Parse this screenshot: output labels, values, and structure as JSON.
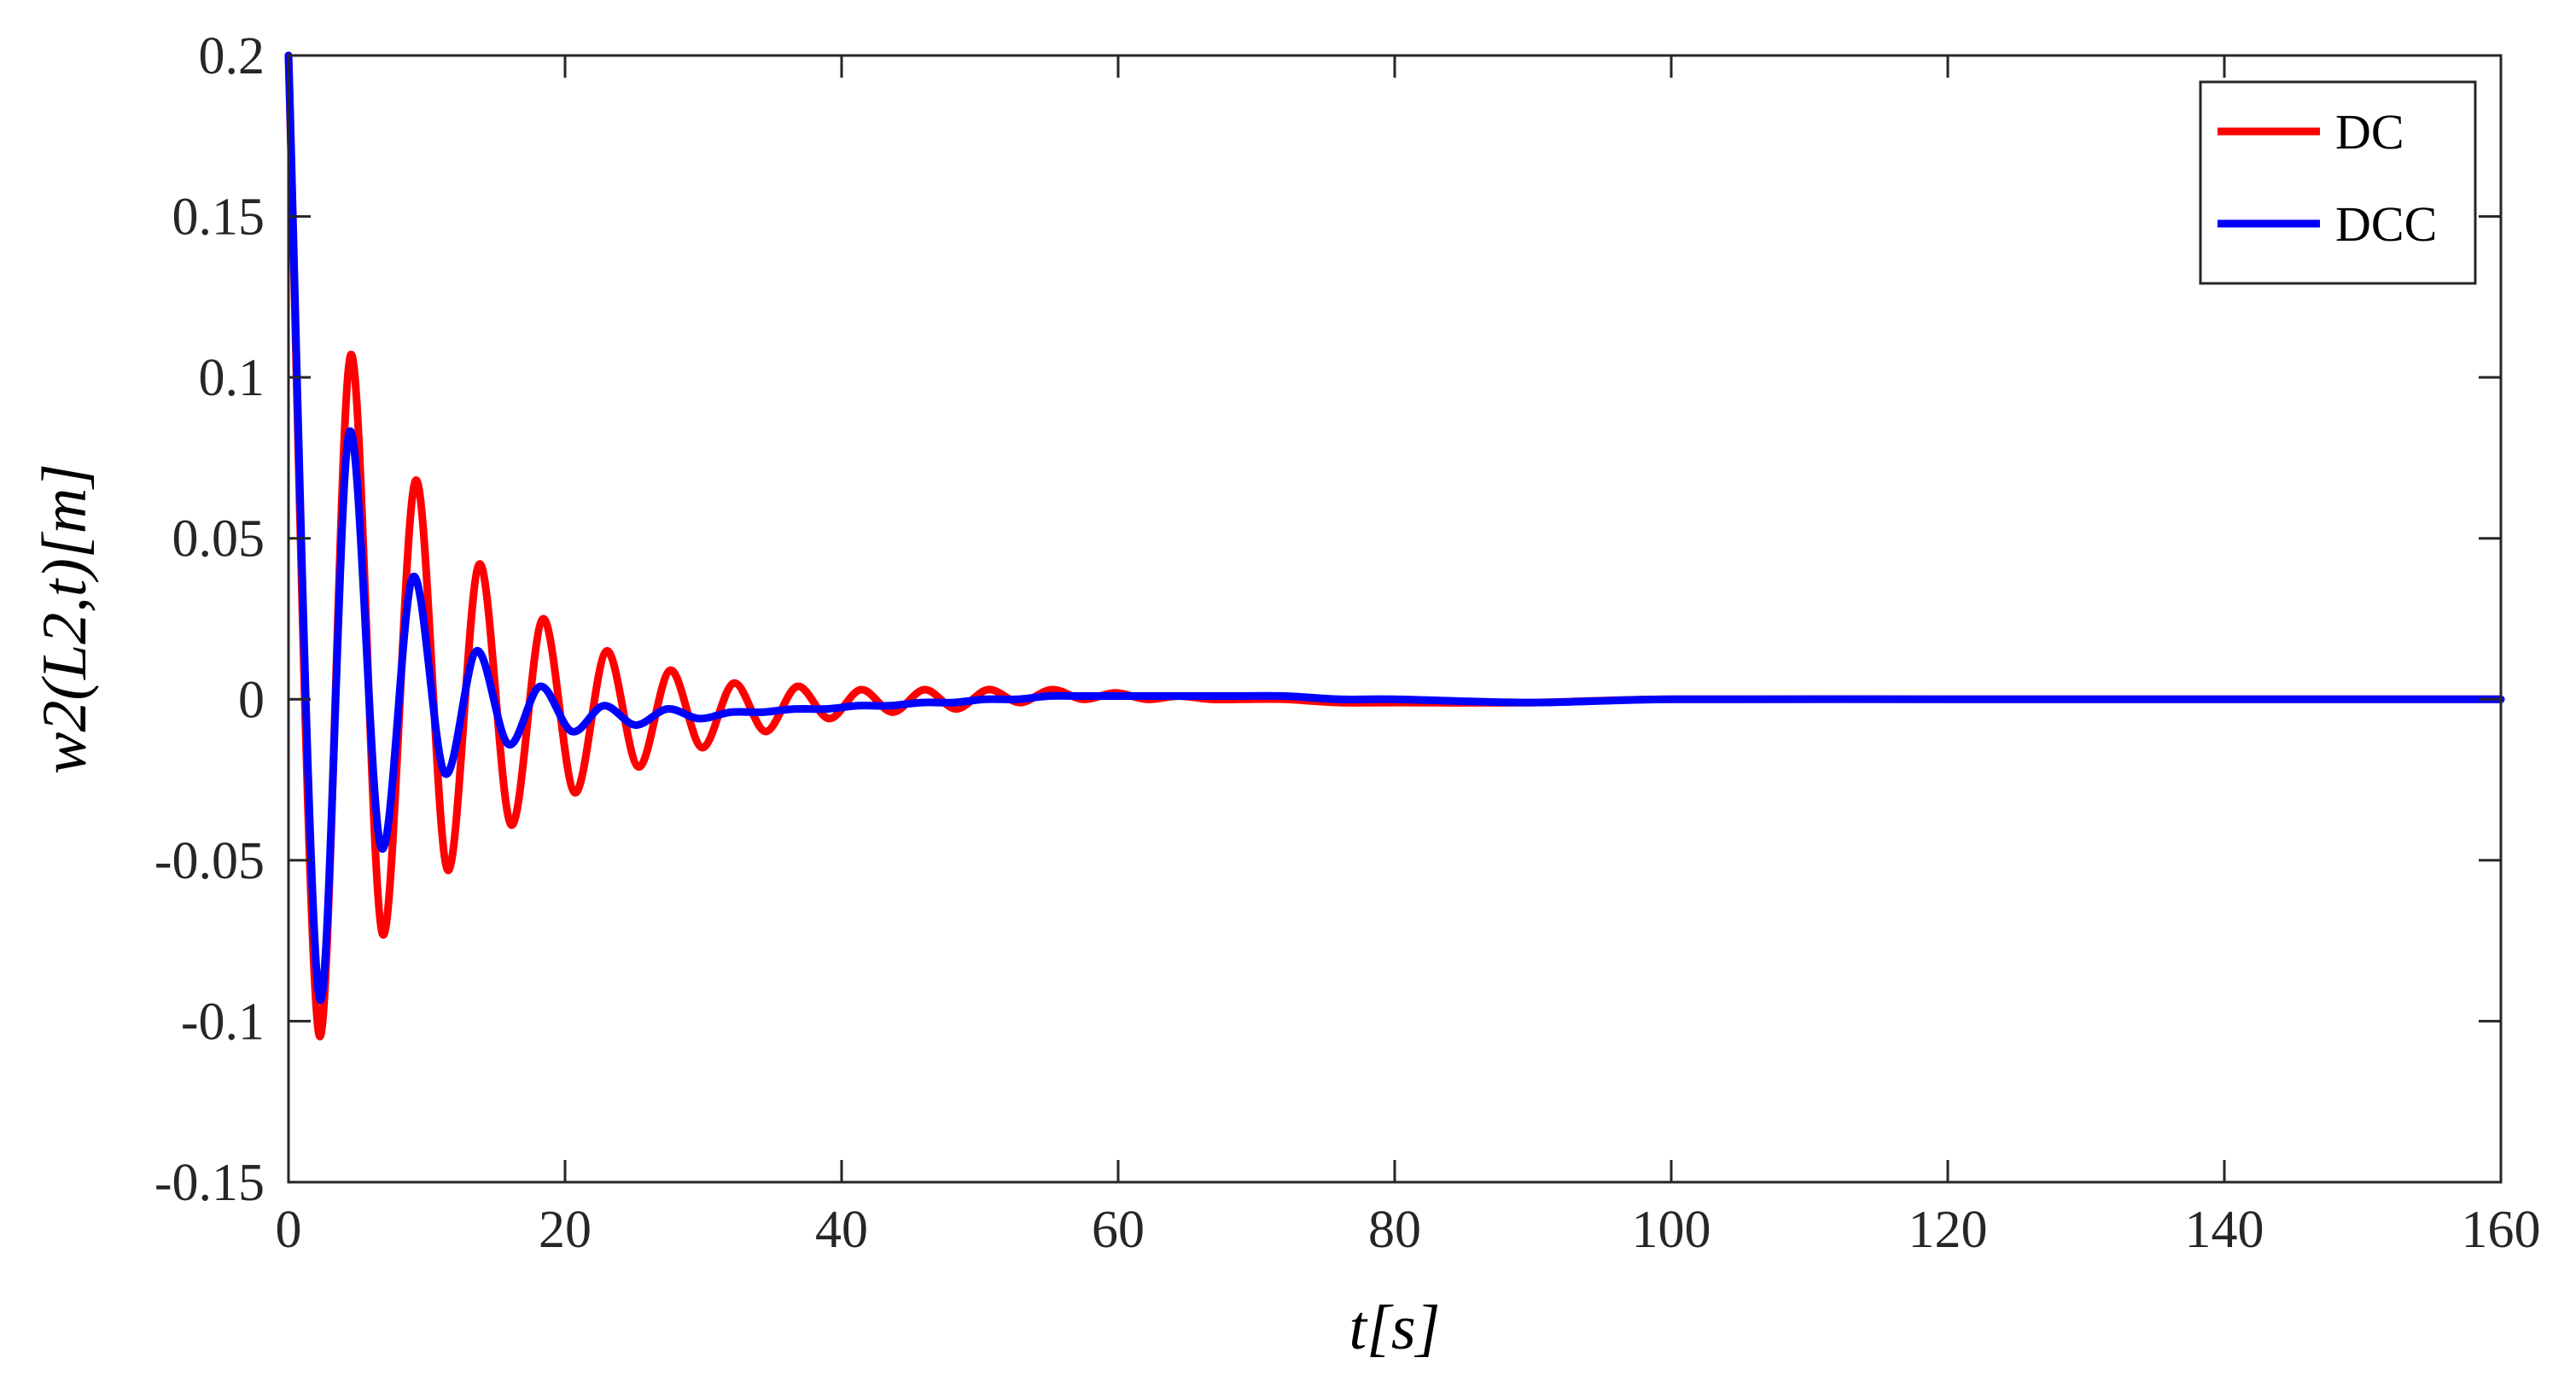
{
  "chart_data": {
    "type": "line",
    "title": "",
    "xlabel": "t[s]",
    "ylabel": "w2(L2,t)[m]",
    "xlim": [
      0,
      160
    ],
    "ylim": [
      -0.15,
      0.2
    ],
    "xticks": [
      0,
      20,
      40,
      60,
      80,
      100,
      120,
      140,
      160
    ],
    "xtick_labels": [
      "0",
      "20",
      "40",
      "60",
      "80",
      "100",
      "120",
      "140",
      "160"
    ],
    "yticks": [
      -0.15,
      -0.1,
      -0.05,
      0,
      0.05,
      0.1,
      0.15,
      0.2
    ],
    "ytick_labels": [
      "-0.15",
      "-0.1",
      "-0.05",
      "0",
      "0.05",
      "0.1",
      "0.15",
      "0.2"
    ],
    "grid": false,
    "legend_position": "top-right",
    "series": [
      {
        "name": "DC",
        "color": "#ff0000",
        "x": [
          0,
          2.2,
          4.5,
          6.8,
          9.2,
          11.5,
          13.8,
          16.1,
          18.4,
          20.7,
          23.0,
          25.3,
          27.6,
          29.9,
          32.2,
          34.5,
          36.8,
          39.1,
          41.4,
          43.7,
          46.0,
          48.3,
          50.6,
          52.9,
          55.2,
          57.5,
          59.8,
          62.1,
          64.4,
          66.7,
          69.0,
          72.0,
          76.0,
          80.0,
          90.0,
          100.0,
          120.0,
          140.0,
          160.0
        ],
        "y": [
          0.2,
          -0.104,
          0.107,
          -0.073,
          0.068,
          -0.053,
          0.042,
          -0.039,
          0.025,
          -0.029,
          0.015,
          -0.021,
          0.009,
          -0.015,
          0.005,
          -0.01,
          0.004,
          -0.006,
          0.003,
          -0.004,
          0.003,
          -0.003,
          0.003,
          -0.001,
          0.003,
          0.0,
          0.002,
          0.0,
          0.001,
          0.0,
          0.0,
          0.0,
          -0.001,
          -0.001,
          -0.001,
          0.0,
          0.0,
          0.0,
          0.0
        ]
      },
      {
        "name": "DCC",
        "color": "#0000ff",
        "x": [
          0,
          2.2,
          4.4,
          6.7,
          9.0,
          11.3,
          13.6,
          15.9,
          18.2,
          20.5,
          22.8,
          25.1,
          27.4,
          29.7,
          32.0,
          34.3,
          36.6,
          38.9,
          41.2,
          43.5,
          45.8,
          48.1,
          50.4,
          52.7,
          55.0,
          57.5,
          60.0,
          64.0,
          68.0,
          72.0,
          76.0,
          80.0,
          90.0,
          100.0,
          120.0,
          140.0,
          160.0
        ],
        "y": [
          0.2,
          -0.092,
          0.083,
          -0.046,
          0.038,
          -0.023,
          0.015,
          -0.014,
          0.004,
          -0.01,
          -0.002,
          -0.008,
          -0.003,
          -0.006,
          -0.004,
          -0.004,
          -0.003,
          -0.003,
          -0.002,
          -0.002,
          -0.001,
          -0.001,
          0.0,
          0.0,
          0.001,
          0.001,
          0.001,
          0.001,
          0.001,
          0.001,
          0.0,
          0.0,
          -0.001,
          0.0,
          0.0,
          0.0,
          0.0
        ]
      }
    ]
  }
}
